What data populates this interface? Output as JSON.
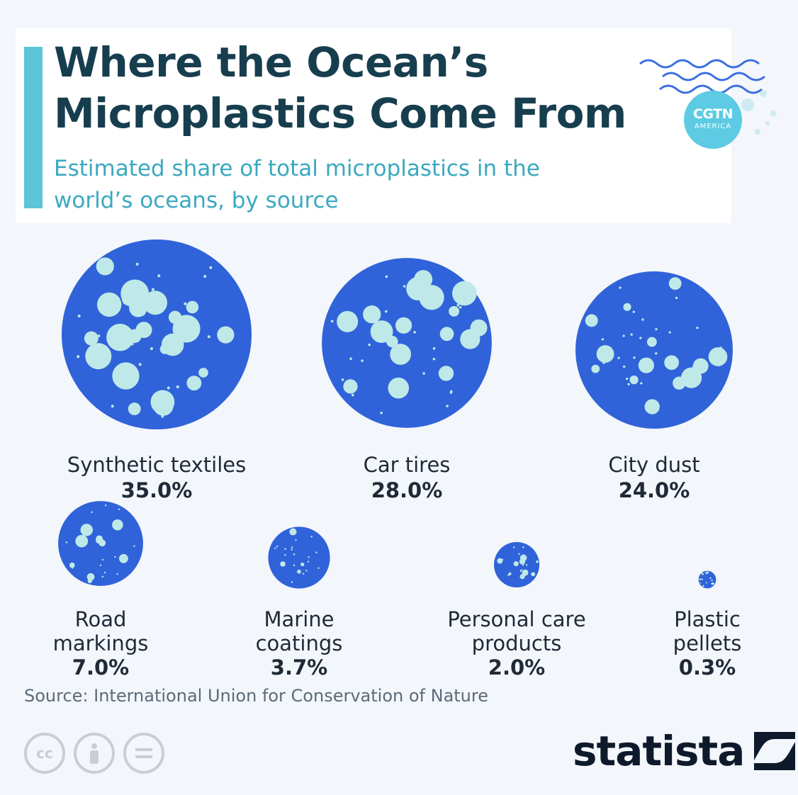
{
  "header": {
    "title": "Where the Ocean’s Microplastics Come From",
    "subtitle": "Estimated share of total microplastics in the world’s oceans, by source"
  },
  "logo": {
    "line1": "CGTN",
    "line2": "AMERICA"
  },
  "source": "Source: International Union for Conservation of Nature",
  "brand": {
    "name": "statista"
  },
  "license_icons": [
    "cc-icon",
    "attribution-icon",
    "no-derivatives-icon"
  ],
  "colors": {
    "bubble": "#3063d9",
    "dots": "#bfe9e8",
    "title": "#173e4e",
    "subtitle": "#3aa9c0",
    "label": "#1f2a36"
  },
  "chart_data": {
    "type": "bubble",
    "title": "Where the Ocean’s Microplastics Come From",
    "subtitle": "Estimated share of total microplastics in the world’s oceans, by source",
    "unit": "%",
    "items": [
      {
        "label": "Synthetic textiles",
        "value": 35.0,
        "display": "35.0%"
      },
      {
        "label": "Car tires",
        "value": 28.0,
        "display": "28.0%"
      },
      {
        "label": "City dust",
        "value": 24.0,
        "display": "24.0%"
      },
      {
        "label": "Road markings",
        "value": 7.0,
        "display": "7.0%"
      },
      {
        "label": "Marine coatings",
        "value": 3.7,
        "display": "3.7%"
      },
      {
        "label": "Personal care products",
        "value": 2.0,
        "display": "2.0%"
      },
      {
        "label": "Plastic pellets",
        "value": 0.3,
        "display": "0.3%"
      }
    ]
  }
}
